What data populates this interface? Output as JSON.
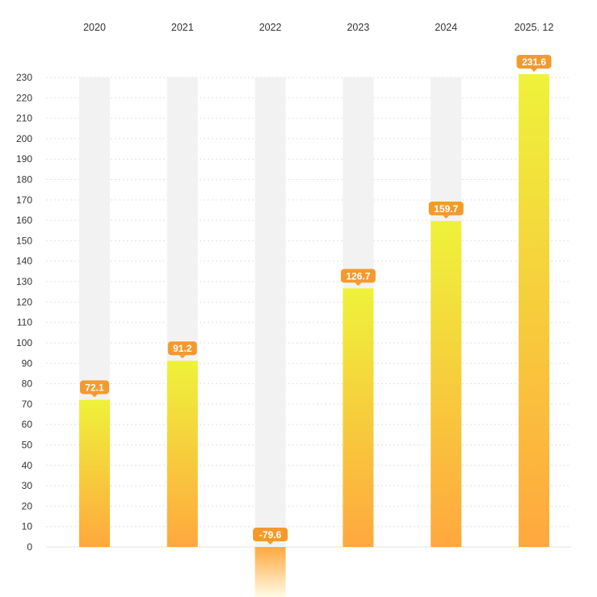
{
  "chart_data": {
    "type": "bar",
    "categories": [
      "2020",
      "2021",
      "2022",
      "2023",
      "2024",
      "2025. 12"
    ],
    "values": [
      72.1,
      91.2,
      -79.6,
      126.7,
      159.7,
      231.6
    ],
    "data_labels": [
      "72.1",
      "91.2",
      "-79.6",
      "126.7",
      "159.7",
      "231.6"
    ],
    "title": "",
    "xlabel": "",
    "ylabel": "",
    "ylim": [
      0,
      230
    ],
    "yticks": [
      0,
      10,
      20,
      30,
      40,
      50,
      60,
      70,
      80,
      90,
      100,
      110,
      120,
      130,
      140,
      150,
      160,
      170,
      180,
      190,
      200,
      210,
      220,
      230
    ],
    "x_axis_position": "top",
    "background_bar_max": 230,
    "background_bars_shown": [
      true,
      true,
      true,
      true,
      true,
      false
    ],
    "grid": true,
    "legend": "none",
    "colors": {
      "bar_top": "#EEF23A",
      "bar_bottom": "#FFA83E",
      "label_bg": "#F39A2E",
      "background_bar": "#F2F2F2",
      "grid": "#E0E0E0"
    }
  }
}
